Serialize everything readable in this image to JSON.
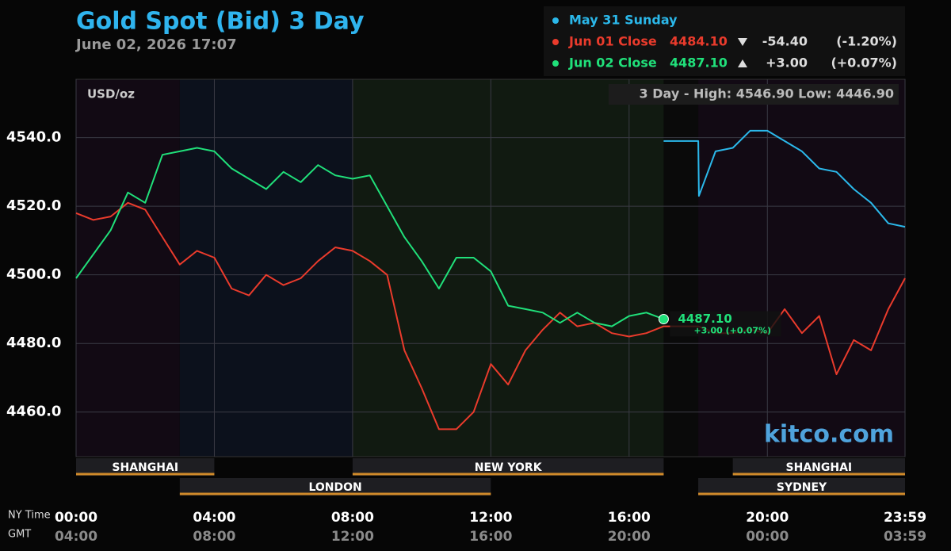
{
  "chart_data": {
    "type": "line",
    "title": "Gold Spot (Bid) 3 Day",
    "subtitle": "June 02, 2026 17:07",
    "unit_label": "USD/oz",
    "range_note": "3 Day - High: 4546.90  Low: 4446.90",
    "watermark": "kitco.com",
    "x_label": "NY Time",
    "x2_label": "GMT",
    "xlim": [
      0,
      23.983
    ],
    "xticks": [
      {
        "value": 0,
        "label": "00:00"
      },
      {
        "value": 4,
        "label": "04:00"
      },
      {
        "value": 8,
        "label": "08:00"
      },
      {
        "value": 12,
        "label": "12:00"
      },
      {
        "value": 16,
        "label": "16:00"
      },
      {
        "value": 20,
        "label": "20:00"
      },
      {
        "value": 23.983,
        "label": "23:59"
      }
    ],
    "gmt_labels": [
      "04:00",
      "08:00",
      "12:00",
      "16:00",
      "20:00",
      "00:00",
      "03:59"
    ],
    "ylim": [
      4447,
      4557
    ],
    "yticks": [
      {
        "value": 4460,
        "label": "4460.0"
      },
      {
        "value": 4480,
        "label": "4480.0"
      },
      {
        "value": 4500,
        "label": "4500.0"
      },
      {
        "value": 4520,
        "label": "4520.0"
      },
      {
        "value": 4540,
        "label": "4540.0"
      }
    ],
    "grid": true,
    "series": [
      {
        "name": "May 31 Sunday",
        "color": "#2bb8ea",
        "x": [
          17,
          18,
          18.02,
          18.5,
          19,
          19.5,
          20,
          20.5,
          21,
          21.5,
          22,
          22.5,
          23,
          23.5,
          23.983
        ],
        "values": [
          4539,
          4539,
          4523,
          4536,
          4537,
          4542,
          4542,
          4539,
          4536,
          4531,
          4530,
          4525,
          4521,
          4515,
          4514
        ]
      },
      {
        "name": "Jun 01 Close",
        "color": "#ea3b2c",
        "price": "4484.10",
        "change": "-54.40",
        "change_pct": "(-1.20%)",
        "x": [
          0,
          0.5,
          1,
          1.5,
          2,
          2.5,
          3,
          3.5,
          4,
          4.5,
          5,
          5.5,
          6,
          6.5,
          7,
          7.5,
          8,
          8.5,
          9,
          9.5,
          10,
          10.5,
          11,
          11.5,
          12,
          12.5,
          13,
          13.5,
          14,
          14.5,
          15,
          15.5,
          16,
          16.5,
          17,
          17.5,
          18,
          18.5,
          19,
          19.5,
          20,
          20.5,
          21,
          21.5,
          22,
          22.5,
          23,
          23.5,
          23.983
        ],
        "values": [
          4518,
          4516,
          4517,
          4521,
          4519,
          4511,
          4503,
          4507,
          4505,
          4496,
          4494,
          4500,
          4497,
          4499,
          4504,
          4508,
          4507,
          4504,
          4500,
          4478,
          4467,
          4455,
          4455,
          4460,
          4474,
          4468,
          4478,
          4484,
          4489,
          4485,
          4486,
          4483,
          4482,
          4483,
          4485,
          4485,
          4485,
          4483,
          4483,
          4484,
          4483,
          4490,
          4483,
          4488,
          4471,
          4481,
          4478,
          4490,
          4499
        ]
      },
      {
        "name": "Jun 02 Close",
        "color": "#20e07a",
        "price": "4487.10",
        "change": "+3.00",
        "change_pct": "(+0.07%)",
        "x": [
          0,
          0.5,
          1,
          1.5,
          2,
          2.5,
          3,
          3.5,
          4,
          4.5,
          5,
          5.5,
          6,
          6.5,
          7,
          7.5,
          8,
          8.5,
          9,
          9.5,
          10,
          10.5,
          11,
          11.5,
          12,
          12.5,
          13,
          13.5,
          14,
          14.5,
          15,
          15.5,
          16,
          16.5,
          17
        ],
        "values": [
          4499,
          4506,
          4513,
          4524,
          4521,
          4535,
          4536,
          4537,
          4536,
          4531,
          4528,
          4525,
          4530,
          4527,
          4532,
          4529,
          4528,
          4529,
          4520,
          4511,
          4504,
          4496,
          4505,
          4505,
          4501,
          4491,
          4490,
          4489,
          4486,
          4489,
          4486,
          4485,
          4488,
          4489,
          4487.1
        ],
        "last_label": "4487.10",
        "last_change": "+3.00 (+0.07%)"
      }
    ],
    "sessions_upper": [
      {
        "name": "SHANGHAI",
        "start": 0,
        "end": 4
      },
      {
        "name": "NEW YORK",
        "start": 8,
        "end": 17
      },
      {
        "name": "SHANGHAI",
        "start": 19,
        "end": 23.983
      }
    ],
    "sessions_lower": [
      {
        "name": "LONDON",
        "start": 3,
        "end": 12
      },
      {
        "name": "SYDNEY",
        "start": 18,
        "end": 23.983
      }
    ]
  }
}
